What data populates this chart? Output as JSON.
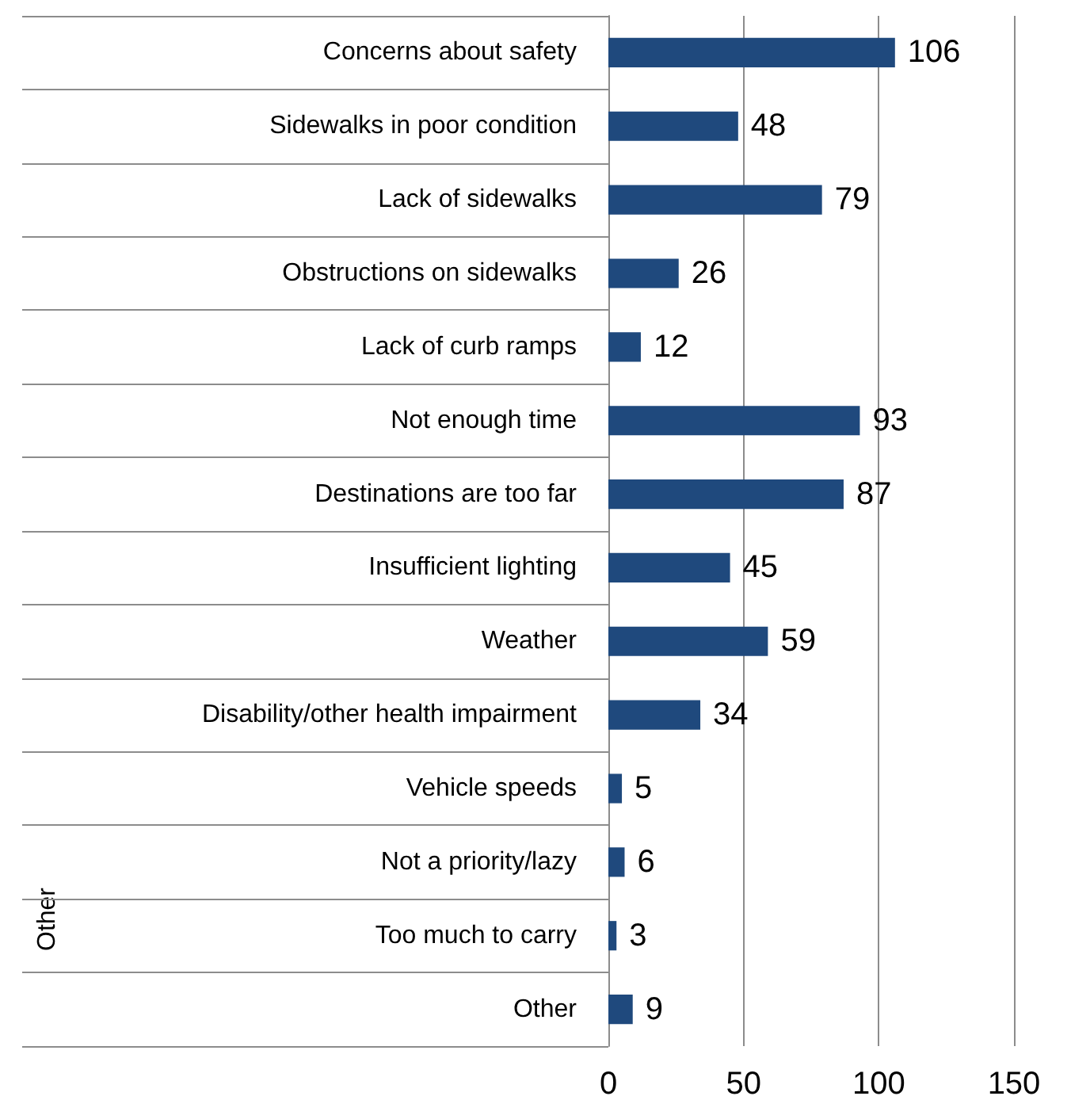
{
  "chart_data": {
    "type": "bar",
    "orientation": "horizontal",
    "categories": [
      "Concerns about safety",
      "Sidewalks in poor condition",
      "Lack of sidewalks",
      "Obstructions on sidewalks",
      "Lack of curb ramps",
      "Not enough time",
      "Destinations are too far",
      "Insufficient lighting",
      "Weather",
      "Disability/other health impairment",
      "Vehicle speeds",
      "Not a priority/lazy",
      "Too much to carry",
      "Other"
    ],
    "values": [
      106,
      48,
      79,
      26,
      12,
      93,
      87,
      45,
      59,
      34,
      5,
      6,
      3,
      9
    ],
    "color": "#1f497d",
    "xlim": [
      0,
      150
    ],
    "xticks": [
      0,
      50,
      100,
      150
    ],
    "grid": "x",
    "data_labels": true,
    "annotations": [
      "Other"
    ]
  }
}
